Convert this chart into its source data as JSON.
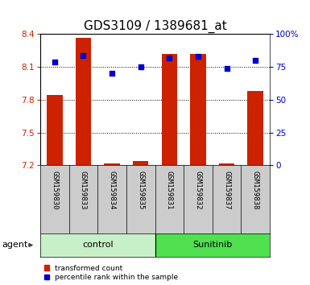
{
  "title": "GDS3109 / 1389681_at",
  "samples": [
    "GSM159830",
    "GSM159833",
    "GSM159834",
    "GSM159835",
    "GSM159831",
    "GSM159832",
    "GSM159837",
    "GSM159838"
  ],
  "red_values": [
    7.84,
    8.37,
    7.22,
    7.24,
    8.22,
    8.22,
    7.22,
    7.88
  ],
  "blue_values": [
    79,
    84,
    70,
    75,
    82,
    83,
    74,
    80
  ],
  "groups": [
    {
      "label": "control",
      "indices": [
        0,
        1,
        2,
        3
      ],
      "color": "#c8f0c8"
    },
    {
      "label": "Sunitinib",
      "indices": [
        4,
        5,
        6,
        7
      ],
      "color": "#50e050"
    }
  ],
  "ylim_left": [
    7.2,
    8.4
  ],
  "ylim_right": [
    0,
    100
  ],
  "yticks_left": [
    7.2,
    7.5,
    7.8,
    8.1,
    8.4
  ],
  "yticks_right": [
    0,
    25,
    50,
    75,
    100
  ],
  "ytick_labels_right": [
    "0",
    "25",
    "50",
    "75",
    "100%"
  ],
  "hlines": [
    7.5,
    7.8,
    8.1
  ],
  "bar_color": "#cc2200",
  "dot_color": "#0000cc",
  "bar_width": 0.55,
  "agent_label": "agent",
  "legend_items": [
    {
      "color": "#cc2200",
      "label": "transformed count"
    },
    {
      "color": "#0000cc",
      "label": "percentile rank within the sample"
    }
  ],
  "plot_bg": "#ffffff",
  "tick_label_area_bg": "#cccccc",
  "title_fontsize": 11,
  "tick_fontsize": 7.5,
  "sample_fontsize": 6.5
}
